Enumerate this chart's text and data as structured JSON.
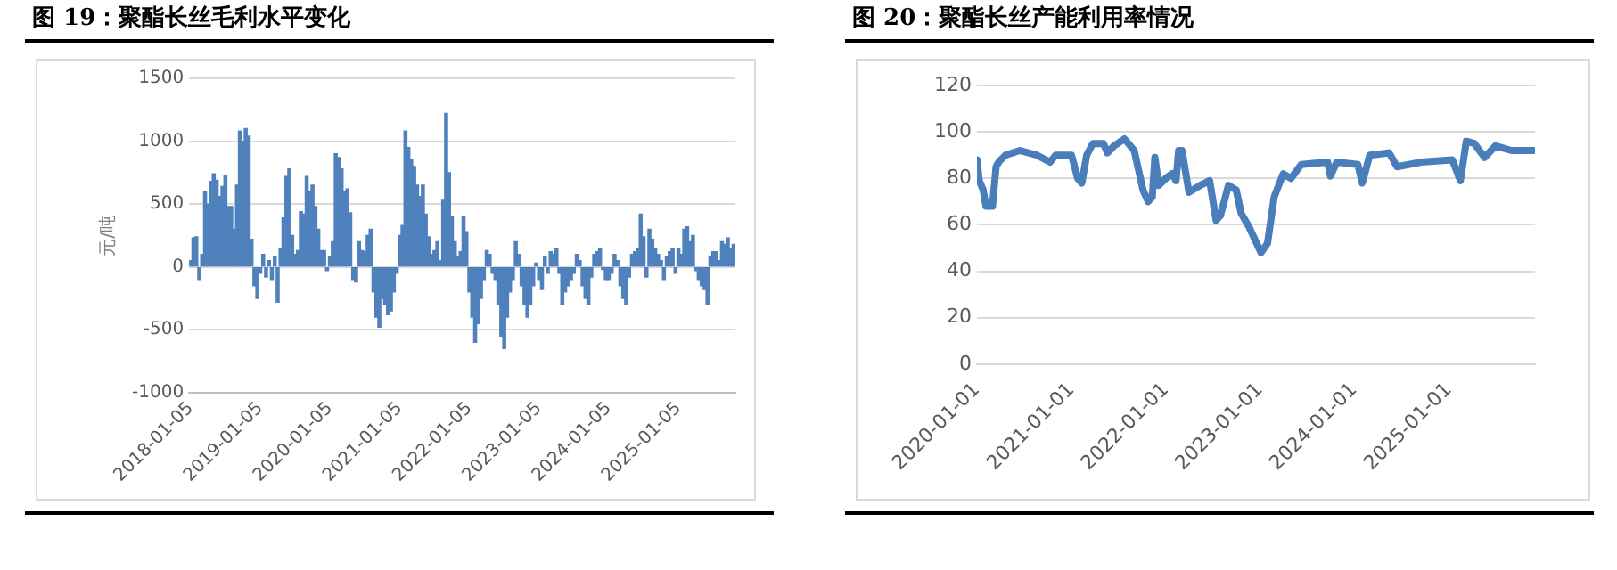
{
  "chart_data": [
    {
      "type": "bar",
      "title": "图 19：聚酯长丝毛利水平变化",
      "ylabel": "元/吨",
      "color": "#4f81bd",
      "categories": [
        "2018-01-05",
        null,
        null,
        null,
        null,
        null,
        null,
        null,
        null,
        null,
        null,
        null,
        null,
        null,
        null,
        null,
        null,
        null,
        null,
        null,
        null,
        null,
        null,
        null,
        "2019-01-05",
        null,
        null,
        null,
        null,
        null,
        null,
        null,
        null,
        null,
        null,
        null,
        null,
        null,
        null,
        null,
        null,
        null,
        null,
        null,
        null,
        null,
        null,
        null,
        "2020-01-05",
        null,
        null,
        null,
        null,
        null,
        null,
        null,
        null,
        null,
        null,
        null,
        null,
        null,
        null,
        null,
        null,
        null,
        null,
        null,
        null,
        null,
        null,
        null,
        "2021-01-05",
        null,
        null,
        null,
        null,
        null,
        null,
        null,
        null,
        null,
        null,
        null,
        null,
        null,
        null,
        null,
        null,
        null,
        null,
        null,
        null,
        null,
        null,
        null,
        "2022-01-05",
        null,
        null,
        null,
        null,
        null,
        null,
        null,
        null,
        null,
        null,
        null,
        null,
        null,
        null,
        null,
        null,
        null,
        null,
        null,
        null,
        null,
        null,
        null,
        "2023-01-05",
        null,
        null,
        null,
        null,
        null,
        null,
        null,
        null,
        null,
        null,
        null,
        null,
        null,
        null,
        null,
        null,
        null,
        null,
        null,
        null,
        null,
        null,
        null,
        "2024-01-05",
        null,
        null,
        null,
        null,
        null,
        null,
        null,
        null,
        null,
        null,
        null,
        null,
        null,
        null,
        null,
        null,
        null,
        null,
        null,
        null,
        null,
        null,
        null,
        "2025-01-05",
        null,
        null,
        null,
        null,
        null,
        null,
        null,
        null,
        null,
        null,
        null,
        null,
        null,
        null,
        null,
        null,
        null,
        null,
        null
      ],
      "values": [
        50,
        230,
        240,
        -100,
        100,
        600,
        500,
        680,
        740,
        690,
        560,
        640,
        730,
        480,
        480,
        300,
        650,
        1080,
        1000,
        1100,
        1040,
        220,
        -150,
        -250,
        -50,
        100,
        -80,
        50,
        -100,
        80,
        -280,
        150,
        390,
        720,
        780,
        250,
        100,
        130,
        440,
        420,
        720,
        600,
        650,
        480,
        300,
        130,
        130,
        -30,
        80,
        200,
        900,
        870,
        780,
        600,
        620,
        430,
        -100,
        -120,
        200,
        130,
        120,
        250,
        300,
        -200,
        -400,
        -480,
        -250,
        -300,
        -380,
        -350,
        -200,
        -50,
        250,
        330,
        1080,
        950,
        850,
        800,
        650,
        560,
        650,
        420,
        240,
        100,
        130,
        200,
        50,
        530,
        1220,
        750,
        400,
        200,
        80,
        120,
        400,
        280,
        -200,
        -400,
        -600,
        -450,
        -250,
        -100,
        130,
        100,
        -50,
        -100,
        -300,
        -550,
        -650,
        -400,
        -200,
        -100,
        200,
        100,
        -150,
        -300,
        -400,
        -300,
        -150,
        30,
        -100,
        -180,
        80,
        -50,
        120,
        100,
        150,
        -50,
        -300,
        -200,
        -150,
        -100,
        -50,
        100,
        50,
        -150,
        -250,
        -300,
        -80,
        100,
        120,
        150,
        -20,
        -100,
        -100,
        -50,
        100,
        50,
        -150,
        -250,
        -300,
        -80,
        100,
        120,
        150,
        420,
        240,
        -80,
        300,
        220,
        150,
        100,
        50,
        -100,
        80,
        120,
        150,
        -50,
        150,
        100,
        300,
        320,
        200,
        250,
        -30,
        -100,
        -150,
        -180,
        -300,
        80,
        120,
        120,
        50,
        200,
        180,
        230,
        150,
        180
      ],
      "ylim": [
        -1000,
        1500
      ],
      "yticks": [
        -1000,
        -500,
        0,
        500,
        1000,
        1500
      ],
      "grid": "y",
      "legend": false
    },
    {
      "type": "line",
      "title": "图 20：聚酯长丝产能利用率情况",
      "color": "#4a7ebb",
      "marker": "none",
      "line_style": "solid",
      "x": [
        "2020-01-01",
        "2020-01-10",
        "2020-01-25",
        "2020-02-05",
        "2020-03-01",
        "2020-03-15",
        "2020-03-25",
        "2020-04-20",
        "2020-06-15",
        "2020-08-20",
        "2020-10-10",
        "2020-11-01",
        "2021-01-01",
        "2021-01-25",
        "2021-02-10",
        "2021-03-01",
        "2021-03-25",
        "2021-05-05",
        "2021-05-20",
        "2021-06-15",
        "2021-07-25",
        "2021-09-01",
        "2021-10-05",
        "2021-10-25",
        "2021-11-10",
        "2021-11-20",
        "2021-12-05",
        "2022-01-01",
        "2022-01-25",
        "2022-02-10",
        "2022-02-20",
        "2022-03-05",
        "2022-04-01",
        "2022-05-15",
        "2022-06-20",
        "2022-07-15",
        "2022-08-01",
        "2022-09-01",
        "2022-10-01",
        "2022-10-20",
        "2022-11-20",
        "2023-01-05",
        "2023-01-30",
        "2023-02-25",
        "2023-04-01",
        "2023-05-01",
        "2023-06-10",
        "2023-09-20",
        "2023-10-01",
        "2023-10-25",
        "2024-01-15",
        "2024-02-01",
        "2024-03-01",
        "2024-05-15",
        "2024-06-15",
        "2024-09-15",
        "2025-01-15",
        "2025-02-15",
        "2025-03-10",
        "2025-04-10",
        "2025-05-20",
        "2025-07-01",
        "2025-09-01",
        "2025-11-25"
      ],
      "values": [
        88,
        79,
        75,
        68,
        68,
        85,
        87,
        90,
        92,
        90,
        87,
        90,
        90,
        80,
        78,
        90,
        95,
        95,
        91,
        94,
        97,
        92,
        75,
        70,
        72,
        89,
        77,
        80,
        82,
        79,
        92,
        92,
        74,
        77,
        79,
        62,
        64,
        77,
        75,
        65,
        59,
        48,
        52,
        72,
        82,
        80,
        86,
        87,
        81,
        87,
        86,
        78,
        90,
        91,
        85,
        87,
        88,
        79,
        96,
        95,
        89,
        94,
        92,
        92
      ],
      "xlim": [
        "2020-01-01",
        "2025-12-01"
      ],
      "xticks": [
        "2020-01-01",
        "2021-01-01",
        "2022-01-01",
        "2023-01-01",
        "2024-01-01",
        "2025-01-01"
      ],
      "ylim": [
        0,
        120
      ],
      "yticks": [
        0,
        20,
        40,
        60,
        80,
        100,
        120
      ],
      "grid": "y",
      "legend": false
    }
  ]
}
